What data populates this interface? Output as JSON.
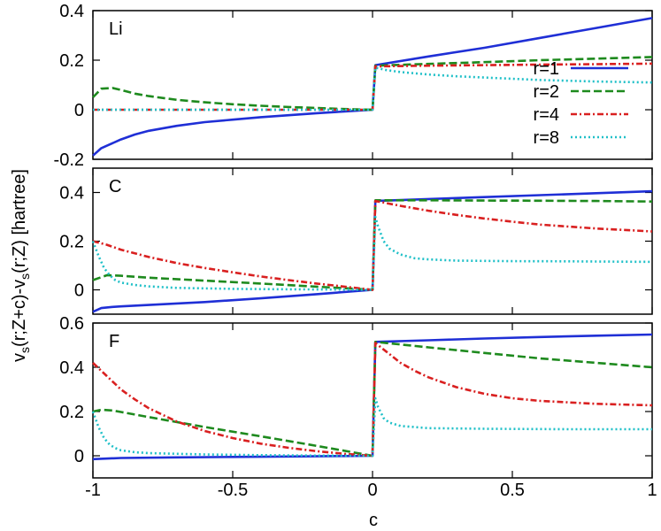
{
  "chart_data": [
    {
      "type": "line",
      "panel_label": "Li",
      "xlim": [
        -1,
        1
      ],
      "ylim": [
        -0.2,
        0.4
      ],
      "yticks": [
        "-0.2",
        "0",
        "0.2",
        "0.4"
      ],
      "legend": {
        "placement": "right",
        "entries": [
          "r=1",
          "r=2",
          "r=4",
          "r=8"
        ]
      },
      "series": [
        {
          "name": "r=1",
          "color": "#1f2fd6",
          "dash": "solid",
          "x": [
            -1,
            -0.97,
            -0.94,
            -0.9,
            -0.85,
            -0.8,
            -0.7,
            -0.6,
            -0.5,
            -0.4,
            -0.3,
            -0.2,
            -0.1,
            0,
            0.01,
            0.2,
            0.4,
            0.6,
            0.8,
            1
          ],
          "y": [
            -0.185,
            -0.155,
            -0.14,
            -0.12,
            -0.1,
            -0.085,
            -0.065,
            -0.05,
            -0.04,
            -0.03,
            -0.022,
            -0.014,
            -0.007,
            0,
            0.18,
            0.215,
            0.25,
            0.29,
            0.33,
            0.37
          ]
        },
        {
          "name": "r=2",
          "color": "#1e8a1e",
          "dash": "dash",
          "x": [
            -1,
            -0.97,
            -0.93,
            -0.9,
            -0.85,
            -0.8,
            -0.7,
            -0.6,
            -0.5,
            -0.4,
            -0.3,
            -0.2,
            -0.1,
            0,
            0.01,
            0.2,
            0.4,
            0.6,
            0.8,
            1
          ],
          "y": [
            0.05,
            0.085,
            0.088,
            0.08,
            0.065,
            0.055,
            0.04,
            0.03,
            0.022,
            0.016,
            0.011,
            0.007,
            0.003,
            0,
            0.178,
            0.185,
            0.192,
            0.2,
            0.206,
            0.213
          ]
        },
        {
          "name": "r=4",
          "color": "#d92020",
          "dash": "dashdot",
          "x": [
            -1,
            -0.5,
            0,
            0.01,
            0.2,
            0.4,
            0.6,
            0.8,
            1
          ],
          "y": [
            0,
            0,
            0,
            0.175,
            0.178,
            0.18,
            0.182,
            0.184,
            0.186
          ]
        },
        {
          "name": "r=8",
          "color": "#20c0c8",
          "dash": "dot",
          "x": [
            -1,
            -0.5,
            0,
            0.01,
            0.05,
            0.1,
            0.2,
            0.3,
            0.4,
            0.6,
            0.8,
            1
          ],
          "y": [
            0,
            0,
            0,
            0.17,
            0.16,
            0.152,
            0.142,
            0.135,
            0.13,
            0.12,
            0.114,
            0.11
          ]
        }
      ]
    },
    {
      "type": "line",
      "panel_label": "C",
      "xlim": [
        -1,
        1
      ],
      "ylim": [
        -0.1,
        0.5
      ],
      "yticks": [
        "0",
        "0.2",
        "0.4"
      ],
      "series": [
        {
          "name": "r=1",
          "color": "#1f2fd6",
          "dash": "solid",
          "x": [
            -1,
            -0.97,
            -0.93,
            -0.9,
            -0.8,
            -0.6,
            -0.4,
            -0.2,
            0,
            0.01,
            0.2,
            0.4,
            0.6,
            0.8,
            1
          ],
          "y": [
            -0.09,
            -0.075,
            -0.07,
            -0.068,
            -0.062,
            -0.05,
            -0.035,
            -0.018,
            0,
            0.365,
            0.373,
            0.381,
            0.389,
            0.397,
            0.405
          ]
        },
        {
          "name": "r=2",
          "color": "#1e8a1e",
          "dash": "dash",
          "x": [
            -1,
            -0.95,
            -0.9,
            -0.8,
            -0.6,
            -0.4,
            -0.2,
            0,
            0.01,
            0.2,
            0.4,
            0.6,
            0.8,
            1
          ],
          "y": [
            0.04,
            0.06,
            0.058,
            0.05,
            0.038,
            0.026,
            0.013,
            0,
            0.368,
            0.368,
            0.367,
            0.366,
            0.365,
            0.363
          ]
        },
        {
          "name": "r=4",
          "color": "#d92020",
          "dash": "dashdot",
          "x": [
            -1,
            -0.95,
            -0.9,
            -0.8,
            -0.7,
            -0.6,
            -0.5,
            -0.4,
            -0.3,
            -0.2,
            -0.1,
            0,
            0.01,
            0.1,
            0.2,
            0.3,
            0.4,
            0.5,
            0.6,
            0.8,
            1
          ],
          "y": [
            0.2,
            0.185,
            0.165,
            0.135,
            0.11,
            0.09,
            0.072,
            0.055,
            0.04,
            0.026,
            0.013,
            0,
            0.365,
            0.345,
            0.325,
            0.308,
            0.293,
            0.28,
            0.268,
            0.252,
            0.24
          ]
        },
        {
          "name": "r=8",
          "color": "#20c0c8",
          "dash": "dot",
          "x": [
            -1,
            -0.98,
            -0.96,
            -0.94,
            -0.92,
            -0.9,
            -0.85,
            -0.8,
            -0.7,
            -0.5,
            -0.3,
            -0.1,
            0,
            0.01,
            0.02,
            0.04,
            0.06,
            0.1,
            0.15,
            0.2,
            0.3,
            0.5,
            0.7,
            1
          ],
          "y": [
            0.2,
            0.14,
            0.09,
            0.06,
            0.04,
            0.03,
            0.02,
            0.014,
            0.008,
            0.004,
            0.002,
            0.001,
            0,
            0.3,
            0.26,
            0.2,
            0.17,
            0.145,
            0.13,
            0.125,
            0.12,
            0.118,
            0.117,
            0.115
          ]
        }
      ]
    },
    {
      "type": "line",
      "panel_label": "F",
      "xlim": [
        -1,
        1
      ],
      "ylim": [
        -0.1,
        0.6
      ],
      "yticks": [
        "0",
        "0.2",
        "0.4",
        "0.6"
      ],
      "series": [
        {
          "name": "r=1",
          "color": "#1f2fd6",
          "dash": "solid",
          "x": [
            -1,
            -0.9,
            -0.7,
            -0.5,
            -0.3,
            -0.1,
            0,
            0.01,
            0.2,
            0.4,
            0.6,
            0.8,
            1
          ],
          "y": [
            -0.015,
            -0.01,
            -0.007,
            -0.005,
            -0.003,
            -0.001,
            0,
            0.515,
            0.522,
            0.53,
            0.537,
            0.543,
            0.548
          ]
        },
        {
          "name": "r=2",
          "color": "#1e8a1e",
          "dash": "dash",
          "x": [
            -1,
            -0.97,
            -0.93,
            -0.9,
            -0.8,
            -0.6,
            -0.4,
            -0.2,
            0,
            0.01,
            0.2,
            0.4,
            0.6,
            0.8,
            1
          ],
          "y": [
            0.2,
            0.208,
            0.205,
            0.198,
            0.175,
            0.13,
            0.088,
            0.045,
            0,
            0.515,
            0.49,
            0.465,
            0.44,
            0.42,
            0.4
          ]
        },
        {
          "name": "r=4",
          "color": "#d92020",
          "dash": "dashdot",
          "x": [
            -1,
            -0.95,
            -0.9,
            -0.85,
            -0.8,
            -0.7,
            -0.6,
            -0.5,
            -0.4,
            -0.3,
            -0.2,
            -0.1,
            0,
            0.01,
            0.03,
            0.06,
            0.1,
            0.15,
            0.2,
            0.3,
            0.4,
            0.5,
            0.6,
            0.8,
            1
          ],
          "y": [
            0.42,
            0.36,
            0.3,
            0.255,
            0.215,
            0.155,
            0.112,
            0.08,
            0.055,
            0.036,
            0.021,
            0.009,
            0,
            0.51,
            0.49,
            0.46,
            0.42,
            0.385,
            0.355,
            0.31,
            0.28,
            0.26,
            0.248,
            0.235,
            0.228
          ]
        },
        {
          "name": "r=8",
          "color": "#20c0c8",
          "dash": "dot",
          "x": [
            -1,
            -0.98,
            -0.96,
            -0.94,
            -0.92,
            -0.9,
            -0.85,
            -0.8,
            -0.6,
            -0.4,
            -0.2,
            0,
            0.01,
            0.02,
            0.04,
            0.06,
            0.1,
            0.2,
            0.4,
            0.7,
            1
          ],
          "y": [
            0.2,
            0.13,
            0.08,
            0.05,
            0.035,
            0.025,
            0.016,
            0.012,
            0.006,
            0.003,
            0.001,
            0,
            0.26,
            0.22,
            0.17,
            0.15,
            0.135,
            0.125,
            0.122,
            0.12,
            0.12
          ]
        }
      ]
    }
  ],
  "shared_xaxis": {
    "xlabel": "c",
    "xticks": [
      "-1",
      "-0.5",
      "0",
      "0.5",
      "1"
    ]
  },
  "shared_ylabel": {
    "prefix1": "v",
    "sub1": "s",
    "middle": "(r;Z+c)-v",
    "sub2": "s",
    "suffix": "(r;Z) [hartree]"
  }
}
